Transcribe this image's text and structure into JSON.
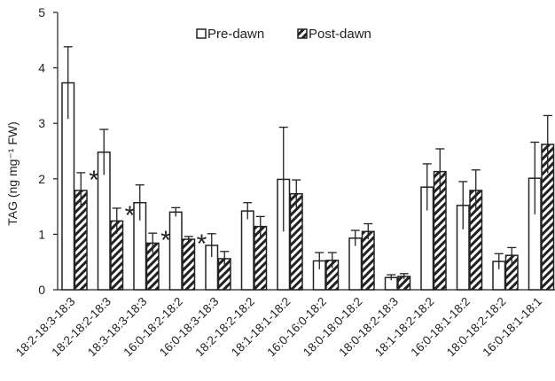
{
  "chart_data": {
    "type": "bar",
    "title": "",
    "xlabel": "",
    "ylabel": "TAG (ng mg⁻¹ FW)",
    "ylim": [
      0,
      5
    ],
    "yticks": [
      0,
      1,
      2,
      3,
      4,
      5
    ],
    "grid": false,
    "legend_position": "top-center",
    "categories": [
      "18:2-18:3-18:3",
      "18:2-18:2-18:3",
      "18:3-18:3-18:3",
      "16:0-18:2-18:2",
      "16:0-18:3-18:3",
      "18:2-18:2-18:2",
      "18:1-18:1-18:2",
      "16:0-16:0-18:2",
      "18:0-18:0-18:2",
      "18:0-18:2-18:3",
      "18:1-18:2-18:2",
      "16:0-18:1-18:2",
      "18:0-18:2-18:2",
      "16:0-18:1-18:1"
    ],
    "series": [
      {
        "name": "Pre-dawn",
        "pattern": "open",
        "values": [
          3.73,
          2.48,
          1.57,
          1.4,
          0.8,
          1.42,
          1.99,
          0.52,
          0.93,
          0.22,
          1.85,
          1.52,
          0.51,
          2.01
        ],
        "errors": [
          0.65,
          0.41,
          0.32,
          0.08,
          0.21,
          0.15,
          0.94,
          0.15,
          0.14,
          0.05,
          0.42,
          0.43,
          0.14,
          0.65
        ]
      },
      {
        "name": "Post-dawn",
        "pattern": "hatched",
        "values": [
          1.79,
          1.24,
          0.84,
          0.91,
          0.56,
          1.14,
          1.73,
          0.53,
          1.05,
          0.24,
          2.13,
          1.79,
          0.62,
          2.62
        ],
        "errors": [
          0.32,
          0.23,
          0.18,
          0.05,
          0.13,
          0.18,
          0.25,
          0.14,
          0.14,
          0.05,
          0.41,
          0.37,
          0.14,
          0.52
        ]
      }
    ],
    "significance_marker": "*",
    "significant_category_indices": [
      0,
      1,
      2,
      3
    ]
  },
  "colors": {
    "axis": "#222222",
    "bar_outline": "#222222",
    "bar_fill_open": "#ffffff",
    "hatch": "#222222"
  }
}
